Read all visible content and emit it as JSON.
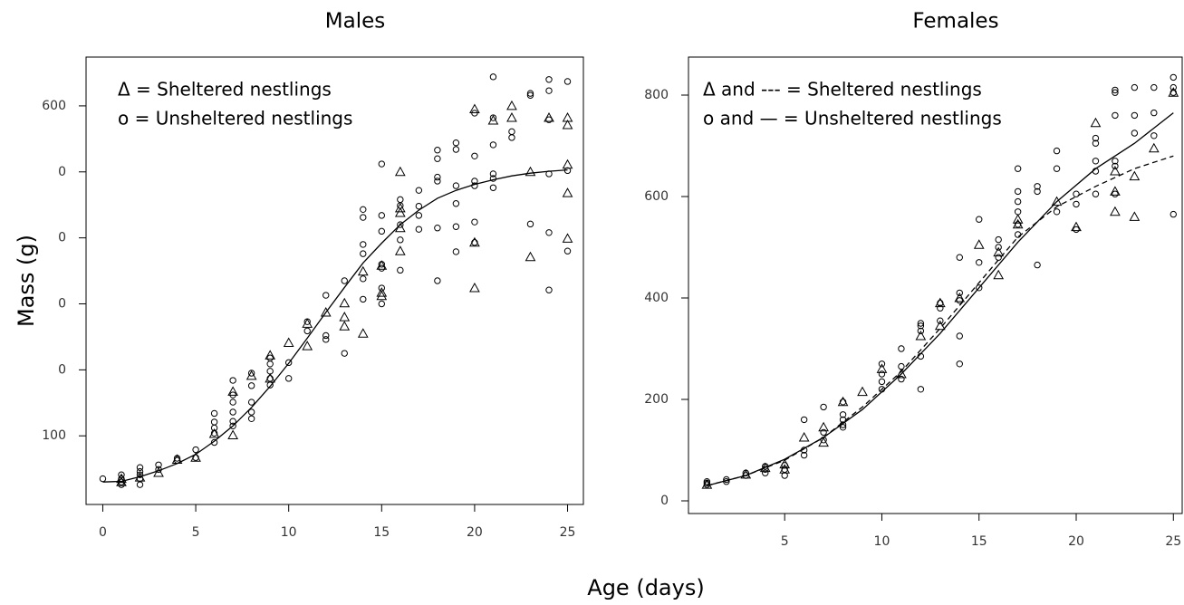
{
  "chart_data": [
    {
      "type": "scatter",
      "title": "Males",
      "ylabel": "Mass (g)",
      "legend": "upper left",
      "xlim": [
        -0.9,
        25.9
      ],
      "xticks": [
        0,
        5,
        10,
        15,
        20,
        25
      ],
      "ylim": [
        -4,
        674
      ],
      "yticks": [
        {
          "value": 100,
          "label": "100"
        },
        {
          "value": 200,
          "label": "0"
        },
        {
          "value": 300,
          "label": "0"
        },
        {
          "value": 400,
          "label": "0"
        },
        {
          "value": 500,
          "label": "0"
        },
        600
      ],
      "series": [
        {
          "name": "Δ = Sheltered nestlings",
          "marker": "triangle",
          "color": "#000000",
          "x": [
            1,
            1,
            2,
            3,
            4,
            5,
            6,
            7,
            7,
            8,
            9,
            9,
            10,
            11,
            11,
            12,
            13,
            13,
            13,
            14,
            14,
            15,
            15,
            15,
            16,
            16,
            16,
            16,
            16,
            20,
            20,
            20,
            21,
            22,
            22,
            23,
            23,
            24,
            25,
            25,
            25,
            25,
            25
          ],
          "values": [
            30,
            35,
            37,
            44,
            64,
            67,
            103,
            167,
            101,
            191,
            222,
            187,
            241,
            270,
            236,
            287,
            301,
            280,
            266,
            349,
            255,
            358,
            312,
            317,
            500,
            445,
            438,
            415,
            380,
            595,
            393,
            324,
            578,
            600,
            582,
            500,
            371,
            582,
            582,
            571,
            511,
            468,
            399
          ]
        },
        {
          "name": "o = Unsheltered nestlings",
          "marker": "circle",
          "color": "#000000",
          "x": [
            0,
            1,
            1,
            1,
            1,
            2,
            2,
            2,
            2,
            2,
            3,
            3,
            4,
            4,
            5,
            5,
            6,
            6,
            6,
            6,
            6,
            7,
            7,
            7,
            7,
            7,
            7,
            8,
            8,
            8,
            8,
            8,
            9,
            9,
            9,
            9,
            9,
            10,
            10,
            11,
            11,
            12,
            12,
            12,
            13,
            13,
            14,
            14,
            14,
            14,
            14,
            14,
            15,
            15,
            15,
            15,
            15,
            15,
            15,
            16,
            16,
            16,
            16,
            16,
            17,
            17,
            17,
            17,
            18,
            18,
            18,
            18,
            18,
            18,
            19,
            19,
            19,
            19,
            19,
            19,
            20,
            20,
            20,
            20,
            20,
            20,
            21,
            21,
            21,
            21,
            21,
            21,
            22,
            22,
            23,
            23,
            23,
            24,
            24,
            24,
            24,
            24,
            24,
            25,
            25,
            25
          ],
          "values": [
            35,
            41,
            35,
            30,
            26,
            52,
            46,
            41,
            35,
            26,
            56,
            49,
            66,
            63,
            79,
            67,
            134,
            121,
            112,
            104,
            90,
            184,
            162,
            151,
            136,
            122,
            115,
            195,
            176,
            151,
            136,
            126,
            218,
            209,
            198,
            187,
            177,
            211,
            187,
            259,
            273,
            313,
            252,
            246,
            335,
            225,
            443,
            431,
            390,
            376,
            338,
            307,
            512,
            434,
            410,
            360,
            300,
            324,
            354,
            458,
            449,
            420,
            397,
            351,
            472,
            448,
            434,
            413,
            533,
            520,
            492,
            486,
            415,
            335,
            544,
            534,
            479,
            452,
            417,
            379,
            589,
            524,
            486,
            479,
            424,
            393,
            644,
            582,
            541,
            497,
            490,
            476,
            561,
            552,
            619,
            616,
            421,
            640,
            623,
            579,
            497,
            408,
            321,
            637,
            502,
            380
          ]
        },
        {
          "type": "line",
          "dash": false,
          "color": "#000000",
          "x": [
            0,
            1,
            2,
            3,
            4,
            5,
            6,
            7,
            8,
            9,
            10,
            11,
            12,
            13,
            14,
            15,
            16,
            17,
            18,
            19,
            20,
            21,
            22,
            23,
            24,
            25
          ],
          "values": [
            30,
            31,
            38,
            47,
            58,
            72,
            92,
            115,
            143,
            175,
            210,
            248,
            287,
            325,
            362,
            392,
            420,
            442,
            460,
            472,
            481,
            488,
            494,
            498,
            501,
            503
          ]
        }
      ]
    },
    {
      "type": "scatter",
      "title": "Females",
      "legend": "upper left",
      "xlim": [
        0.05,
        25.5
      ],
      "xticks": [
        5,
        10,
        15,
        20,
        25
      ],
      "ylim": [
        -25,
        875
      ],
      "yticks": [
        0,
        200,
        400,
        600,
        800
      ],
      "series": [
        {
          "name": "Δ and --- = Sheltered nestlings",
          "marker": "triangle",
          "color": "#000000",
          "x": [
            1,
            3,
            4,
            5,
            5,
            6,
            7,
            7,
            8,
            9,
            10,
            11,
            12,
            13,
            13,
            14,
            15,
            16,
            16,
            17,
            17,
            19,
            20,
            21,
            22,
            22,
            22,
            23,
            23,
            24,
            25
          ],
          "values": [
            32,
            52,
            65,
            62,
            72,
            125,
            115,
            145,
            195,
            215,
            260,
            250,
            325,
            345,
            390,
            400,
            505,
            445,
            490,
            545,
            555,
            590,
            540,
            745,
            570,
            610,
            650,
            560,
            640,
            695,
            805
          ]
        },
        {
          "name": "o and — = Unsheltered nestlings",
          "marker": "circle",
          "color": "#000000",
          "x": [
            1,
            1,
            1,
            2,
            2,
            3,
            3,
            4,
            4,
            4,
            5,
            5,
            5,
            6,
            6,
            6,
            7,
            7,
            7,
            8,
            8,
            8,
            8,
            8,
            10,
            10,
            10,
            10,
            11,
            11,
            11,
            12,
            12,
            12,
            12,
            12,
            13,
            13,
            13,
            14,
            14,
            14,
            14,
            14,
            15,
            15,
            15,
            16,
            16,
            16,
            17,
            17,
            17,
            17,
            17,
            17,
            18,
            18,
            18,
            19,
            19,
            19,
            20,
            20,
            20,
            21,
            21,
            21,
            21,
            21,
            22,
            22,
            22,
            22,
            22,
            22,
            23,
            23,
            23,
            24,
            24,
            24,
            25,
            25,
            25,
            25
          ],
          "values": [
            32,
            35,
            38,
            38,
            42,
            50,
            55,
            55,
            62,
            68,
            50,
            62,
            70,
            90,
            100,
            160,
            120,
            135,
            185,
            145,
            150,
            160,
            170,
            195,
            220,
            235,
            250,
            270,
            240,
            265,
            300,
            220,
            285,
            335,
            345,
            350,
            355,
            380,
            390,
            270,
            325,
            395,
            410,
            480,
            420,
            470,
            555,
            480,
            500,
            515,
            525,
            545,
            570,
            590,
            610,
            655,
            465,
            610,
            620,
            570,
            655,
            690,
            535,
            585,
            605,
            605,
            650,
            670,
            705,
            715,
            605,
            660,
            670,
            760,
            805,
            810,
            725,
            760,
            815,
            720,
            765,
            815,
            565,
            805,
            815,
            835
          ]
        },
        {
          "type": "line",
          "dash": true,
          "color": "#000000",
          "x": [
            1,
            3,
            5,
            7,
            9,
            11,
            13,
            15,
            17,
            19,
            21,
            23,
            25
          ],
          "values": [
            30,
            50,
            80,
            125,
            185,
            255,
            340,
            430,
            520,
            580,
            620,
            655,
            680
          ]
        },
        {
          "type": "line",
          "dash": false,
          "color": "#000000",
          "x": [
            1,
            3,
            5,
            7,
            9,
            11,
            13,
            15,
            17,
            19,
            21,
            23,
            25
          ],
          "values": [
            30,
            50,
            82,
            125,
            180,
            250,
            330,
            420,
            510,
            590,
            655,
            705,
            765
          ]
        }
      ]
    }
  ],
  "xlabel": "Age (days)"
}
